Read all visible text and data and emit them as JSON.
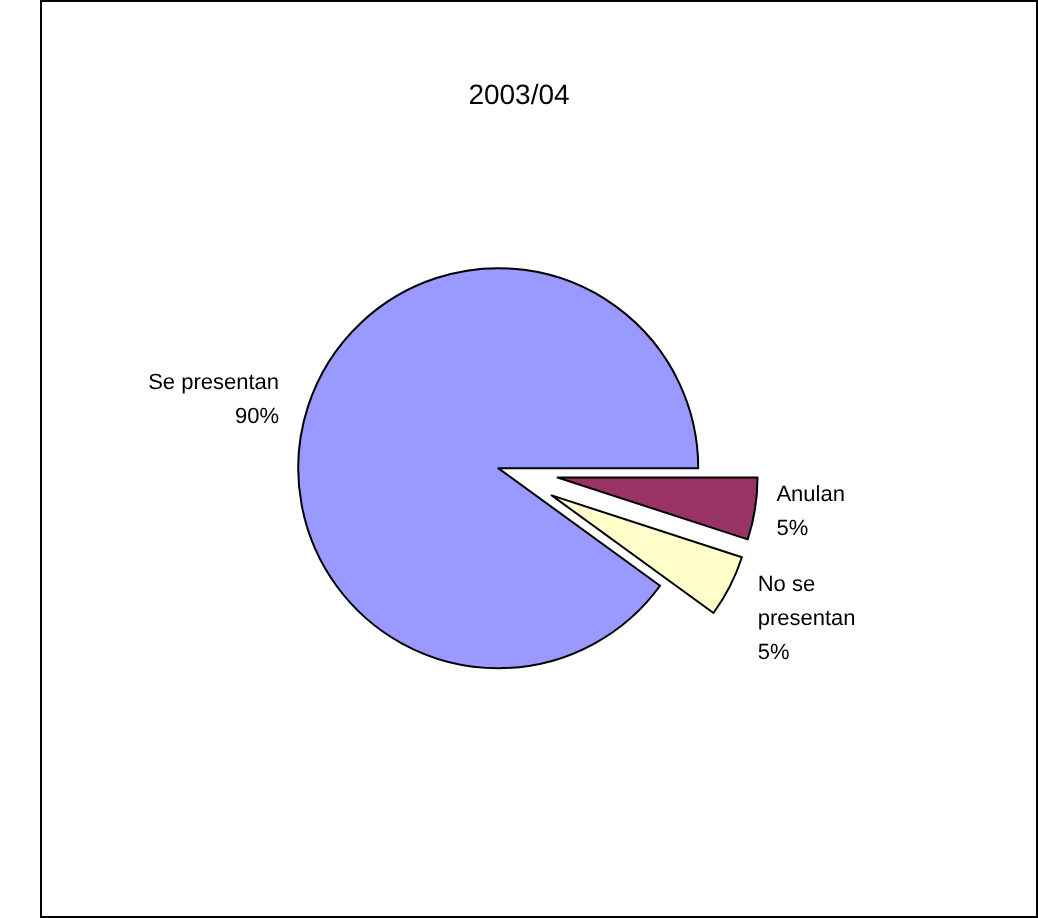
{
  "chart_data": {
    "type": "pie",
    "title": "2003/04",
    "categories": [
      "Anulan",
      "No se presentan",
      "Se presentan"
    ],
    "values": [
      5,
      5,
      90
    ],
    "colors": [
      "#993366",
      "#ffffcc",
      "#9999ff"
    ],
    "value_labels": [
      "5%",
      "5%",
      "90%"
    ],
    "legend": false
  }
}
